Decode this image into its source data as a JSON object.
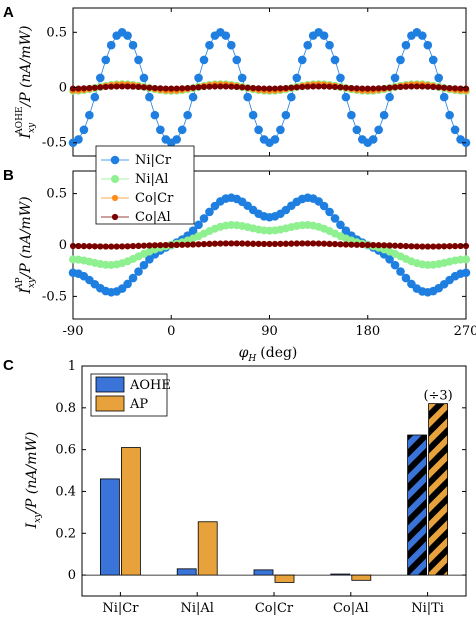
{
  "colors": {
    "ni_cr": "#1f7fe0",
    "ni_al": "#8ef08e",
    "co_cr": "#ff8c1a",
    "co_al": "#7a0000",
    "aohe_bar": "#3a74d8",
    "ap_bar": "#e8a23c",
    "axis": "#000000",
    "gray": "#999999"
  },
  "panels": {
    "a": {
      "letter": "A",
      "ylabel_main": "I",
      "ylabel_sub": "xy",
      "ylabel_sup": "AOHE",
      "ylabel_rest": "/P (nA/mW)"
    },
    "b": {
      "letter": "B",
      "ylabel_main": "I",
      "ylabel_sub": "xy",
      "ylabel_sup": "AP",
      "ylabel_rest": "/P (nA/mW)"
    },
    "c": {
      "letter": "C",
      "ylabel_main": "I",
      "ylabel_sub": "xy",
      "ylabel_rest": "/P (nA/mW)"
    }
  },
  "xlabel_main": "φ",
  "xlabel_sub": "H",
  "xlabel_rest": "(deg)",
  "bar_annotation": "(÷3)",
  "chart_data": [
    {
      "type": "line",
      "panel": "A",
      "xlim": [
        -90,
        270
      ],
      "ylim": [
        -0.62,
        0.72
      ],
      "x_ticks": [
        -90,
        0,
        90,
        180,
        270
      ],
      "y_ticks": [
        -0.5,
        0,
        0.5
      ],
      "y_tick_labels": [
        "-0.5",
        "0",
        "0.5"
      ],
      "legend_placement": "bottom-left",
      "series": [
        {
          "name": "Ni|Cr",
          "amplitude": 0.5,
          "period_deg": 90,
          "offset_deg": -67.5
        },
        {
          "name": "Ni|Al",
          "amplitude": 0.03,
          "period_deg": 90,
          "offset_deg": -67.5
        },
        {
          "name": "Co|Cr",
          "amplitude": 0.03,
          "period_deg": 90,
          "offset_deg": -67.5
        },
        {
          "name": "Co|Al",
          "amplitude": 0.01,
          "period_deg": 90,
          "offset_deg": -67.5
        }
      ]
    },
    {
      "type": "line",
      "panel": "B",
      "xlim": [
        -90,
        270
      ],
      "ylim": [
        -0.72,
        0.72
      ],
      "x_ticks": [
        -90,
        0,
        90,
        180,
        270
      ],
      "x_tick_labels": [
        "-90",
        "0",
        "90",
        "180",
        "270"
      ],
      "y_ticks": [
        -0.5,
        0,
        0.5
      ],
      "y_tick_labels": [
        "-0.5",
        "0",
        "0.5"
      ],
      "series": [
        {
          "name": "Ni|Cr",
          "peak_value": 0.6,
          "dip_value": 0.27
        },
        {
          "name": "Ni|Al",
          "peak_value": 0.25,
          "dip_value": 0.14
        },
        {
          "name": "Co|Cr",
          "peak_value": 0.02,
          "dip_value": 0.01
        },
        {
          "name": "Co|Al",
          "peak_value": 0.02,
          "dip_value": 0.01
        }
      ]
    },
    {
      "type": "bar",
      "panel": "C",
      "categories": [
        "Ni|Cr",
        "Ni|Al",
        "Co|Cr",
        "Co|Al",
        "Ni|Ti"
      ],
      "ylim": [
        -0.1,
        1.0
      ],
      "y_ticks": [
        0,
        0.2,
        0.4,
        0.6,
        0.8,
        1.0
      ],
      "y_tick_labels": [
        "0",
        "0.2",
        "0.4",
        "0.6",
        "0.8",
        "1"
      ],
      "legend_placement": "top-left",
      "hatched_category": "Ni|Ti",
      "series": [
        {
          "name": "AOHE",
          "values": [
            0.46,
            0.03,
            0.025,
            0.005,
            0.67
          ]
        },
        {
          "name": "AP",
          "values": [
            0.61,
            0.255,
            -0.035,
            -0.025,
            0.82
          ]
        }
      ]
    }
  ]
}
